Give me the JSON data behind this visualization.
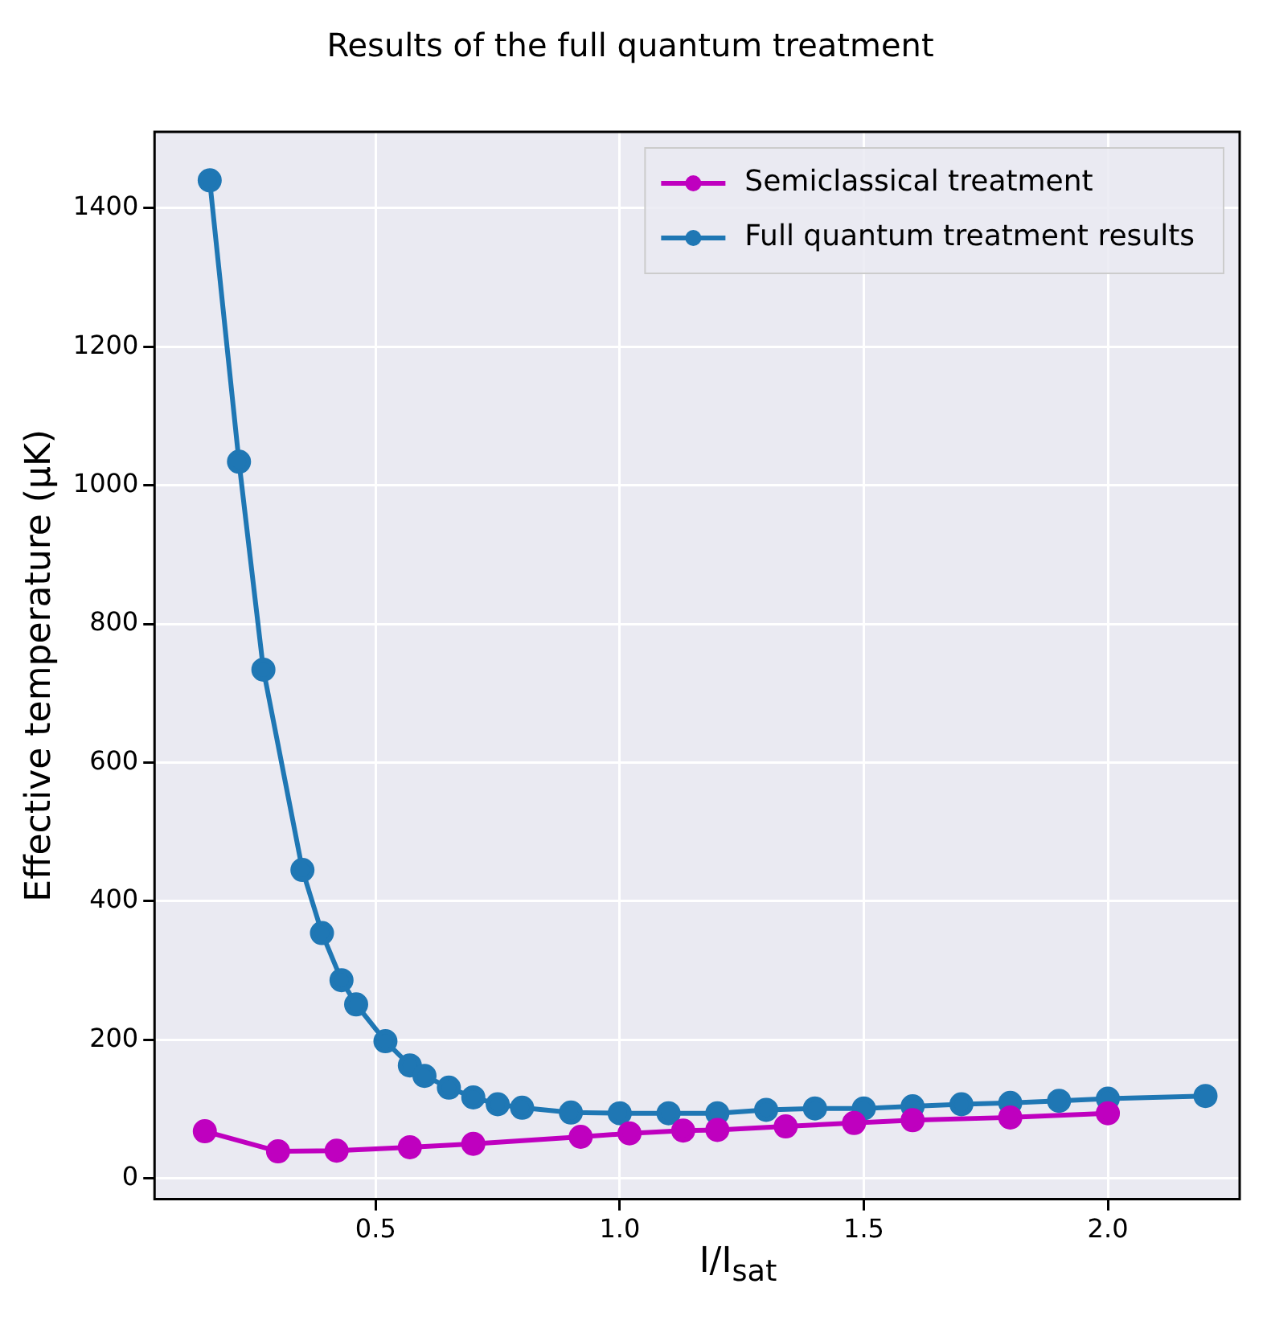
{
  "chart_data": {
    "type": "line",
    "title": "Results of the full quantum treatment",
    "xlabel": "I/I$_{sat}$",
    "ylabel": "Effective temperature (µK)",
    "series": [
      {
        "name": "Semiclassical treatment",
        "color": "#bf00bf",
        "x": [
          0.15,
          0.3,
          0.42,
          0.57,
          0.7,
          0.92,
          1.02,
          1.13,
          1.2,
          1.34,
          1.48,
          1.6,
          1.8,
          2.0
        ],
        "values": [
          68,
          39,
          40,
          45,
          50,
          60,
          65,
          69,
          70,
          75,
          80,
          84,
          88,
          94
        ]
      },
      {
        "name": "Full quantum treatment results",
        "color": "#1f77b4",
        "x": [
          0.16,
          0.22,
          0.27,
          0.35,
          0.39,
          0.43,
          0.46,
          0.52,
          0.57,
          0.6,
          0.65,
          0.7,
          0.75,
          0.8,
          0.9,
          1.0,
          1.1,
          1.2,
          1.3,
          1.4,
          1.5,
          1.6,
          1.7,
          1.8,
          1.9,
          2.0,
          2.2
        ],
        "values": [
          1440,
          1034,
          734,
          445,
          354,
          286,
          251,
          198,
          163,
          148,
          131,
          117,
          107,
          102,
          95,
          94,
          94,
          94,
          99,
          101,
          101,
          104,
          107,
          109,
          112,
          115,
          119
        ]
      }
    ],
    "xlim": [
      0.047,
      2.27
    ],
    "ylim": [
      -30,
      1510
    ],
    "xticks": [
      0.5,
      {
        "value": 1,
        "label": "1.0"
      },
      1.5,
      {
        "value": 2,
        "label": "2.0"
      }
    ],
    "yticks": [
      0,
      200,
      400,
      600,
      800,
      1000,
      1200,
      1400
    ],
    "grid": true,
    "legend": "top right",
    "marker": "circle",
    "line_style": "solid"
  }
}
